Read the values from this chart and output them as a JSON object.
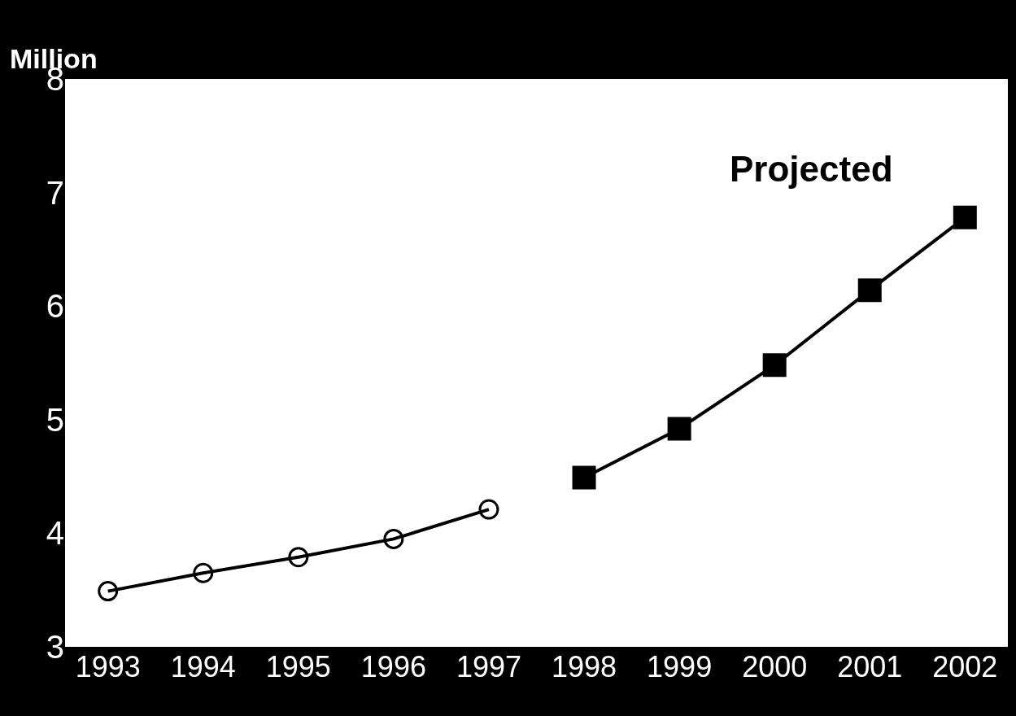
{
  "chart_data": {
    "type": "line",
    "ylabel": "Million",
    "categories": [
      "1993",
      "1994",
      "1995",
      "1996",
      "1997",
      "1998",
      "1999",
      "2000",
      "2001",
      "2002"
    ],
    "series": [
      {
        "color": "#000000",
        "marker": "circle",
        "values": [
          3.49,
          3.65,
          3.79,
          3.95,
          4.21,
          null,
          null,
          null,
          null,
          null
        ]
      },
      {
        "color": "#000000",
        "marker": "square",
        "values": [
          null,
          null,
          null,
          null,
          null,
          4.49,
          4.92,
          5.48,
          6.14,
          6.78
        ]
      }
    ],
    "ylim": [
      3,
      8
    ],
    "yticks": [
      3,
      4,
      5,
      6,
      7,
      8
    ],
    "annotations": [
      "Projected"
    ]
  }
}
